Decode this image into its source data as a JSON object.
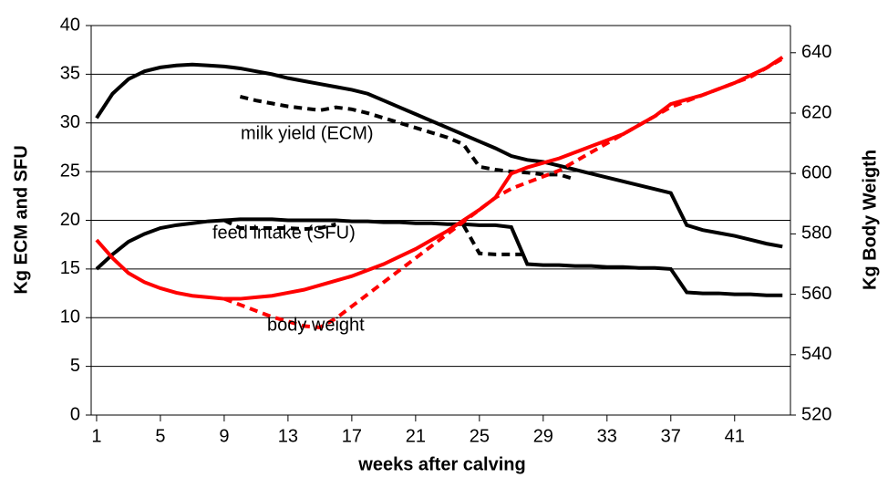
{
  "chart_data": {
    "type": "line",
    "xlabel": "weeks after calving",
    "ylabel": "Kg ECM and SFU",
    "y2label": "Kg Body Weigth",
    "annotations": [
      "milk yield (ECM)",
      "feed intake (SFU)",
      "body weight"
    ],
    "x": [
      1,
      2,
      3,
      4,
      5,
      6,
      7,
      8,
      9,
      10,
      11,
      12,
      13,
      14,
      15,
      16,
      17,
      18,
      19,
      20,
      21,
      22,
      23,
      24,
      25,
      26,
      27,
      28,
      29,
      30,
      31,
      32,
      33,
      34,
      35,
      36,
      37,
      38,
      39,
      40,
      41,
      42,
      43,
      44
    ],
    "xlim": [
      0.66,
      44.5
    ],
    "xticks": [
      1,
      5,
      9,
      13,
      17,
      21,
      25,
      29,
      33,
      37,
      41
    ],
    "ylim": [
      0,
      40
    ],
    "yticks": [
      0,
      5,
      10,
      15,
      20,
      25,
      30,
      35,
      40
    ],
    "y2lim": [
      520,
      649
    ],
    "y2ticks": [
      520,
      540,
      560,
      580,
      600,
      620,
      640
    ],
    "grid": true,
    "series": [
      {
        "color": "#000000",
        "dash": false,
        "values": [
          30.5,
          33,
          34.5,
          35.3,
          35.7,
          35.9,
          36,
          35.9,
          35.8,
          35.6,
          35.3,
          35,
          34.6,
          34.3,
          34,
          33.7,
          33.4,
          33,
          32.3,
          31.6,
          30.9,
          30.2,
          29.5,
          28.8,
          28.1,
          27.4,
          26.6,
          26.2,
          26,
          25.6,
          25.2,
          24.8,
          24.4,
          24,
          23.6,
          23.2,
          22.8,
          19.5,
          19,
          18.7,
          18.4,
          18,
          17.6,
          17.3
        ]
      },
      {
        "color": "#000000",
        "dash": true,
        "values": [
          null,
          null,
          null,
          null,
          null,
          null,
          null,
          null,
          null,
          32.7,
          32.3,
          32,
          31.7,
          31.5,
          31.3,
          31.6,
          31.4,
          31,
          30.5,
          30,
          29.5,
          29,
          28.5,
          27.8,
          25.5,
          25.2,
          25,
          24.9,
          24.7,
          24.7,
          24.2,
          null,
          null,
          null,
          null,
          null,
          null,
          null,
          null,
          null,
          null,
          null,
          null,
          null
        ]
      },
      {
        "color": "#000000",
        "dash": false,
        "values": [
          15,
          16.5,
          17.8,
          18.6,
          19.2,
          19.5,
          19.7,
          19.9,
          20,
          20.1,
          20.1,
          20.1,
          20,
          20,
          20,
          20,
          19.9,
          19.9,
          19.8,
          19.8,
          19.7,
          19.7,
          19.6,
          19.6,
          19.5,
          19.5,
          19.3,
          15.5,
          15.4,
          15.4,
          15.3,
          15.3,
          15.2,
          15.2,
          15.1,
          15.1,
          15,
          12.6,
          12.5,
          12.5,
          12.4,
          12.4,
          12.3,
          12.3
        ]
      },
      {
        "color": "#000000",
        "dash": true,
        "values": [
          null,
          null,
          null,
          null,
          null,
          null,
          null,
          null,
          20,
          19.2,
          19.2,
          19.2,
          19.2,
          19.1,
          19.2,
          19.6,
          null,
          null,
          null,
          null,
          null,
          null,
          null,
          19.5,
          16.6,
          16.5,
          16.5,
          16.5,
          null,
          null,
          null,
          null,
          null,
          null,
          null,
          null,
          null,
          null,
          null,
          null,
          null,
          null,
          null,
          null
        ]
      },
      {
        "color": "#ff0000",
        "dash": false,
        "axis": "y2",
        "values": [
          578,
          572,
          567,
          564,
          562,
          560.5,
          559.5,
          559,
          558.5,
          558.5,
          559,
          559.5,
          560.5,
          561.5,
          563,
          564.5,
          566,
          568,
          570,
          572.5,
          575,
          578,
          581,
          584.5,
          588,
          592,
          600,
          602,
          603.5,
          605,
          607,
          609,
          611,
          613,
          616,
          619,
          623,
          624.5,
          626,
          628,
          630,
          632.5,
          635,
          638.5
        ]
      },
      {
        "color": "#ff0000",
        "dash": true,
        "axis": "y2",
        "values": [
          null,
          null,
          null,
          null,
          null,
          null,
          null,
          null,
          558.5,
          556.5,
          554.5,
          552.5,
          551,
          549.5,
          549,
          552,
          556,
          560,
          564,
          568,
          572,
          576,
          580,
          584,
          588,
          592,
          595,
          597,
          599,
          601,
          604,
          607,
          610,
          613,
          616,
          619,
          622,
          624,
          626,
          628,
          630,
          632,
          635,
          638
        ]
      }
    ]
  }
}
